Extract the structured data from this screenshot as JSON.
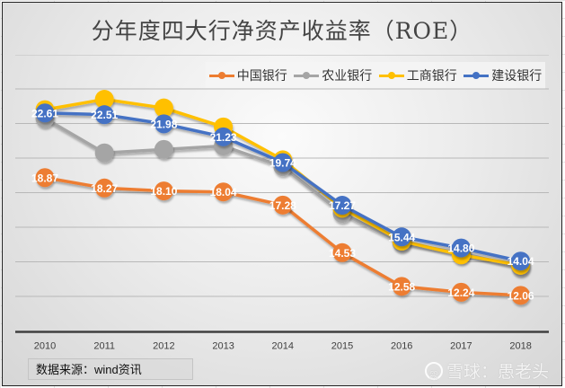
{
  "chart_data": {
    "type": "line",
    "title": "分年度四大行净资产收益率（ROE）",
    "xlabel": "",
    "ylabel": "",
    "ylim": [
      10,
      24
    ],
    "y_gridlines": [
      12,
      14,
      16,
      18,
      20,
      22,
      24
    ],
    "grid": true,
    "legend_position": "top-right",
    "categories": [
      "2010",
      "2011",
      "2012",
      "2013",
      "2014",
      "2015",
      "2016",
      "2017",
      "2018"
    ],
    "series": [
      {
        "name": "中国银行",
        "color": "#ED7D31",
        "values": [
          18.87,
          18.27,
          18.1,
          18.04,
          17.28,
          14.53,
          12.58,
          12.24,
          12.06
        ],
        "labels_shown": true
      },
      {
        "name": "农业银行",
        "color": "#A5A5A5",
        "values": [
          22.3,
          20.3,
          20.5,
          20.7,
          19.5,
          16.8,
          15.1,
          14.5,
          13.7
        ],
        "labels_shown": false
      },
      {
        "name": "工商银行",
        "color": "#FFC000",
        "values": [
          22.8,
          23.4,
          22.9,
          21.8,
          19.9,
          17.1,
          15.2,
          14.4,
          13.8
        ],
        "labels_shown": false
      },
      {
        "name": "建设银行",
        "color": "#4472C4",
        "values": [
          22.61,
          22.51,
          21.98,
          21.23,
          19.74,
          17.27,
          15.44,
          14.8,
          14.04
        ],
        "labels_shown": true
      }
    ]
  },
  "source_note": "数据来源：wind资讯",
  "watermark": {
    "icon": "xueqiu-logo-icon",
    "text": "雪球：愚老头"
  }
}
